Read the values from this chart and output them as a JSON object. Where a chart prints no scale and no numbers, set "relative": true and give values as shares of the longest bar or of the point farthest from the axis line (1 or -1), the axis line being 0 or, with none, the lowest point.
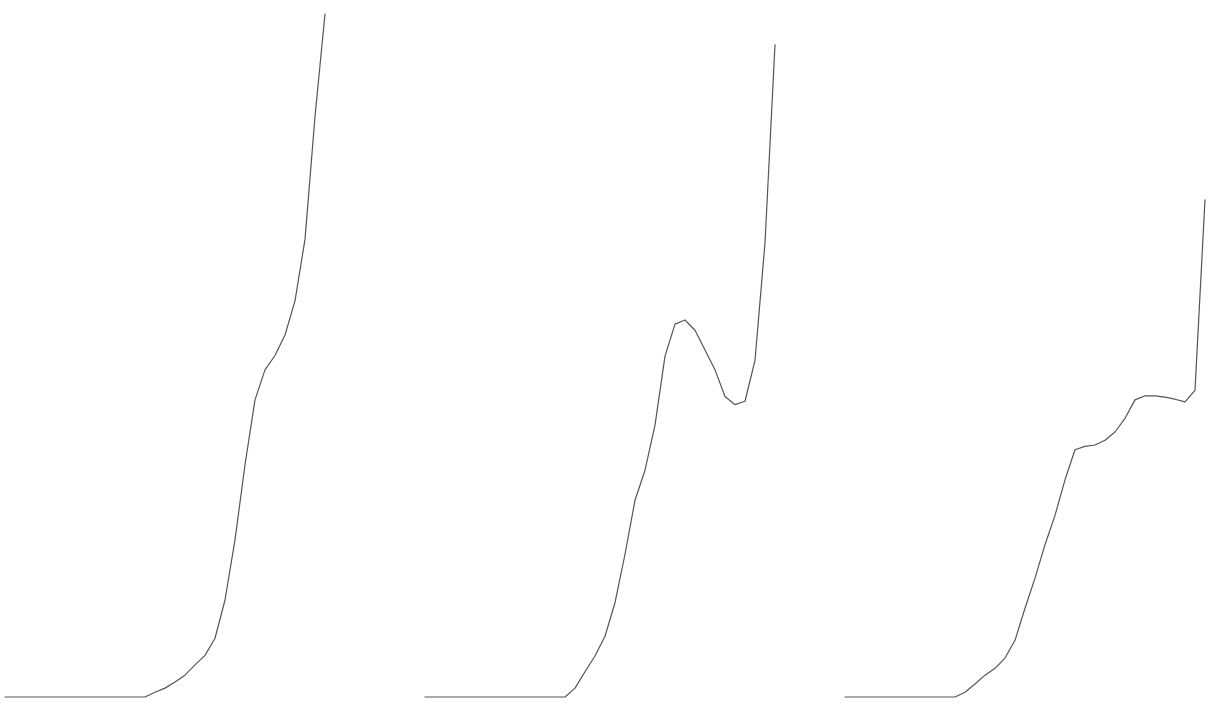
{
  "chart_data": {
    "type": "line",
    "relative": true,
    "categories": [
      null,
      null,
      null,
      null,
      null,
      null,
      null,
      null,
      null,
      null,
      null,
      null,
      null,
      null,
      null,
      null,
      null,
      null,
      null,
      null,
      null,
      null,
      null,
      null,
      null,
      null,
      null,
      null,
      null,
      null,
      null,
      null,
      null,
      null,
      null,
      null,
      null,
      null,
      null,
      null,
      null,
      null,
      null,
      null,
      null,
      null,
      null,
      null,
      null,
      null,
      null,
      null,
      null,
      null,
      null,
      null,
      null,
      null,
      null,
      null,
      null,
      null,
      null,
      null,
      null,
      null,
      null,
      null,
      null,
      null,
      null,
      null,
      null,
      null,
      null,
      null,
      null,
      null,
      null,
      null,
      null,
      null,
      null,
      null,
      null,
      null,
      null,
      null,
      null,
      null,
      null,
      null,
      null,
      null,
      null,
      null,
      null,
      null,
      null,
      null,
      null,
      null,
      null,
      null,
      null,
      null,
      null,
      null,
      null,
      null,
      null,
      null,
      null,
      null,
      null,
      null,
      null,
      null,
      null,
      null,
      null
    ],
    "series": [
      {
        "color": "#555555",
        "values": [
          0,
          0,
          0,
          0,
          0,
          0,
          0,
          0,
          0,
          0,
          0,
          0,
          0,
          0,
          0,
          0.007,
          0.013,
          0.022,
          0.032,
          0.047,
          0.061,
          0.086,
          0.142,
          0.23,
          0.34,
          0.435,
          0.479,
          0.5,
          0.53,
          0.58,
          0.67,
          0.85,
          1,
          null,
          null,
          null,
          null,
          null,
          null,
          null,
          null,
          null,
          null,
          null,
          null,
          null,
          null,
          null,
          null,
          null,
          null,
          null,
          null,
          null,
          null,
          null,
          null,
          null,
          null,
          null,
          null,
          null,
          null,
          null,
          null,
          null,
          null,
          null,
          null,
          null,
          null,
          null,
          null,
          null,
          null,
          null,
          null,
          null,
          null,
          null,
          null,
          null,
          null,
          null,
          null,
          null,
          null,
          null,
          null,
          null,
          null,
          null,
          null,
          null,
          null,
          null,
          null,
          null,
          null,
          null,
          null,
          null,
          null,
          null,
          null,
          null,
          null,
          null,
          null,
          null,
          null,
          null,
          null,
          null,
          null,
          null,
          null,
          null,
          null,
          null,
          null
        ]
      },
      {
        "color": "#555555",
        "values": [
          null,
          null,
          null,
          null,
          null,
          null,
          null,
          null,
          null,
          null,
          null,
          null,
          null,
          null,
          null,
          null,
          null,
          null,
          null,
          null,
          null,
          null,
          null,
          null,
          null,
          null,
          null,
          null,
          null,
          null,
          null,
          null,
          null,
          null,
          null,
          null,
          null,
          null,
          null,
          null,
          null,
          null,
          0,
          0,
          0,
          0,
          0,
          0,
          0,
          0,
          0,
          0,
          0,
          0,
          0,
          0,
          0,
          0.013,
          0.037,
          0.06,
          0.089,
          0.138,
          0.209,
          0.288,
          0.332,
          0.398,
          0.499,
          0.546,
          0.552,
          0.537,
          0.508,
          0.479,
          0.44,
          0.428,
          0.433,
          0.493,
          0.665,
          0.955,
          null,
          null,
          null,
          null,
          null,
          null,
          null,
          null,
          null,
          null,
          null,
          null,
          null,
          null,
          null,
          null,
          null,
          null,
          null,
          null,
          null,
          null,
          null,
          null,
          null,
          null,
          null,
          null,
          null,
          null,
          null,
          null,
          null,
          null,
          null,
          null,
          null,
          null,
          null,
          null,
          null,
          null,
          null
        ]
      },
      {
        "color": "#555555",
        "values": [
          null,
          null,
          null,
          null,
          null,
          null,
          null,
          null,
          null,
          null,
          null,
          null,
          null,
          null,
          null,
          null,
          null,
          null,
          null,
          null,
          null,
          null,
          null,
          null,
          null,
          null,
          null,
          null,
          null,
          null,
          null,
          null,
          null,
          null,
          null,
          null,
          null,
          null,
          null,
          null,
          null,
          null,
          null,
          null,
          null,
          null,
          null,
          null,
          null,
          null,
          null,
          null,
          null,
          null,
          null,
          null,
          null,
          null,
          null,
          null,
          null,
          null,
          null,
          null,
          null,
          null,
          null,
          null,
          null,
          null,
          null,
          null,
          null,
          null,
          null,
          null,
          null,
          null,
          null,
          null,
          null,
          null,
          null,
          null,
          0,
          0,
          0,
          0,
          0,
          0,
          0,
          0,
          0,
          0,
          0,
          0,
          0.007,
          0.019,
          0.032,
          0.042,
          0.057,
          0.083,
          0.13,
          0.174,
          0.223,
          0.266,
          0.318,
          0.362,
          0.367,
          0.369,
          0.376,
          0.388,
          0.408,
          0.435,
          0.441,
          0.441,
          0.439,
          0.436,
          0.432,
          0.449,
          0.728
        ]
      }
    ]
  }
}
